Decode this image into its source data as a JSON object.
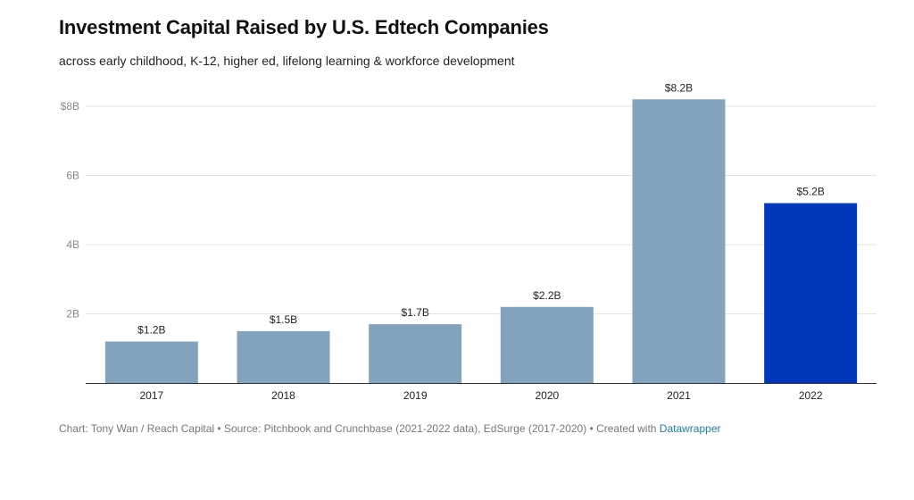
{
  "title": "Investment Capital Raised by U.S. Edtech Companies",
  "subtitle": "across early childhood, K-12, higher ed, lifelong learning & workforce development",
  "footer": {
    "credit": "Chart: Tony Wan / Reach Capital • Source: Pitchbook and Crunchbase (2021-2022 data), EdSurge (2017-2020) • Created with ",
    "link_text": "Datawrapper"
  },
  "colors": {
    "bar": "#81a3bd",
    "highlight": "#0038bb",
    "grid": "#e4e4e4",
    "axis": "#333333",
    "tick_text": "#888888"
  },
  "chart_data": {
    "type": "bar",
    "categories": [
      "2017",
      "2018",
      "2019",
      "2020",
      "2021",
      "2022"
    ],
    "values": [
      1.2,
      1.5,
      1.7,
      2.2,
      8.2,
      5.2
    ],
    "value_labels": [
      "$1.2B",
      "$1.5B",
      "$1.7B",
      "$2.2B",
      "$8.2B",
      "$5.2B"
    ],
    "highlight_index": 5,
    "title": "Investment Capital Raised by U.S. Edtech Companies",
    "xlabel": "",
    "ylabel": "",
    "ylim": [
      0,
      8
    ],
    "yticks": [
      2,
      4,
      6,
      8
    ],
    "ytick_labels": [
      "2B",
      "4B",
      "6B",
      "$8B"
    ],
    "grid": true,
    "legend": "none"
  }
}
